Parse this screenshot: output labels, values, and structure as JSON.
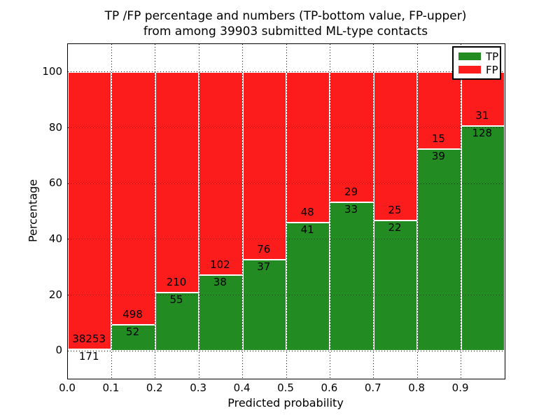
{
  "title": {
    "line1": "TP /FP percentage and numbers (TP-bottom value, FP-upper)",
    "line2": "from among 39903 submitted ML-type contacts"
  },
  "axes": {
    "xlabel": "Predicted probability",
    "ylabel": "Percentage",
    "xticks": [
      "0.0",
      "0.1",
      "0.2",
      "0.3",
      "0.4",
      "0.5",
      "0.6",
      "0.7",
      "0.8",
      "0.9"
    ],
    "yticks": [
      0,
      20,
      40,
      60,
      80,
      100
    ],
    "xlim": [
      0,
      1
    ],
    "ylim": [
      -10,
      110
    ],
    "grid": "dotted"
  },
  "legend": {
    "position": "upper-right",
    "items": [
      {
        "label": "TP",
        "color": "#228b22"
      },
      {
        "label": "FP",
        "color": "#fc1c1c"
      }
    ]
  },
  "colors": {
    "tp": "#228b22",
    "fp": "#fc1c1c",
    "grid": "#000000",
    "bar_edge": "#ffffff",
    "background": "#ffffff"
  },
  "chart_data": {
    "type": "bar",
    "stacked": true,
    "normalized_to_percent": true,
    "title": "TP /FP percentage and numbers (TP-bottom value, FP-upper) from among 39903 submitted ML-type contacts",
    "xlabel": "Predicted probability",
    "ylabel": "Percentage",
    "total_contacts": 39903,
    "bin_width": 0.1,
    "categories": [
      "0.0-0.1",
      "0.1-0.2",
      "0.2-0.3",
      "0.3-0.4",
      "0.4-0.5",
      "0.5-0.6",
      "0.6-0.7",
      "0.7-0.8",
      "0.8-0.9",
      "0.9-1.0"
    ],
    "series": [
      {
        "name": "TP",
        "counts": [
          171,
          52,
          55,
          38,
          37,
          41,
          33,
          22,
          39,
          128
        ]
      },
      {
        "name": "FP",
        "counts": [
          38253,
          498,
          210,
          102,
          76,
          48,
          29,
          25,
          15,
          31
        ]
      }
    ],
    "tp_percent": [
      0.45,
      9.45,
      20.75,
      27.14,
      32.74,
      46.07,
      53.23,
      46.81,
      72.22,
      80.5
    ],
    "ylim": [
      -10,
      110
    ],
    "legend_entries": [
      "TP",
      "FP"
    ]
  }
}
